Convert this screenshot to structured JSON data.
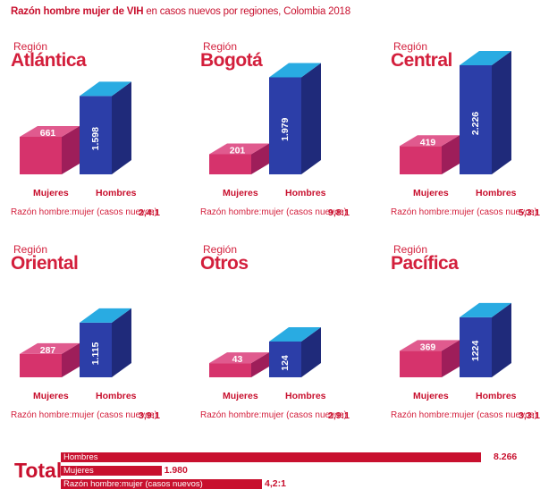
{
  "title_bold": "Razón hombre mujer de VIH",
  "title_rest": " en casos nuevos por regiones, Colombia 2018",
  "chart_data": {
    "type": "bar",
    "title": "Razón hombre mujer de VIH en casos nuevos por regiones, Colombia 2018",
    "categories": [
      "Atlántica",
      "Bogotá",
      "Central",
      "Oriental",
      "Otros",
      "Pacífica"
    ],
    "series": [
      {
        "name": "Mujeres",
        "values": [
          661,
          201,
          419,
          287,
          43,
          369
        ]
      },
      {
        "name": "Hombres",
        "values": [
          1598,
          1979,
          2226,
          1115,
          124,
          1224
        ]
      }
    ],
    "ratio_label": "Razón hombre:mujer (casos nuevos)",
    "ratios": [
      "2,4:1",
      "9,8:1",
      "5,3:1",
      "3,9:1",
      "2,9:1",
      "3,3:1"
    ],
    "colors": {
      "mujeres": "#d6336c",
      "hombres": "#2c3ea8",
      "top_hombres": "#29abe2",
      "accent": "#c8102e"
    }
  },
  "regions": [
    {
      "label": "Región",
      "name": "Atlántica",
      "mujeres": "661",
      "hombres": "1.598",
      "mujeres_label": "Mujeres",
      "hombres_label": "Hombres",
      "ratio_text": "Razón hombre:mujer (casos nuevos)",
      "ratio": "2,4:1"
    },
    {
      "label": "Región",
      "name": "Bogotá",
      "mujeres": "201",
      "hombres": "1.979",
      "mujeres_label": "Mujeres",
      "hombres_label": "Hombres",
      "ratio_text": "Razón hombre:mujer (casos nuevos)",
      "ratio": "9,8:1"
    },
    {
      "label": "Región",
      "name": "Central",
      "mujeres": "419",
      "hombres": "2.226",
      "mujeres_label": "Mujeres",
      "hombres_label": "Hombres",
      "ratio_text": "Razón hombre:mujer (casos nuevos)",
      "ratio": "5,3:1"
    },
    {
      "label": "Región",
      "name": "Oriental",
      "mujeres": "287",
      "hombres": "1.115",
      "mujeres_label": "Mujeres",
      "hombres_label": "Hombres",
      "ratio_text": "Razón hombre:mujer (casos nuevos)",
      "ratio": "3,9:1"
    },
    {
      "label": "Región",
      "name": "Otros",
      "mujeres": "43",
      "hombres": "124",
      "mujeres_label": "Mujeres",
      "hombres_label": "Hombres",
      "ratio_text": "Razón hombre:mujer (casos nuevos)",
      "ratio": "2,9:1"
    },
    {
      "label": "Región",
      "name": "Pacífica",
      "mujeres": "369",
      "hombres": "1224",
      "mujeres_label": "Mujeres",
      "hombres_label": "Hombres",
      "ratio_text": "Razón hombre:mujer (casos nuevos)",
      "ratio": "3,3:1"
    }
  ],
  "total": {
    "label": "Total",
    "hombres_label": "Hombres",
    "hombres_value": "8.266",
    "mujeres_label": "Mujeres",
    "mujeres_value": "1.980",
    "ratio_label": "Razón hombre:mujer (casos nuevos)",
    "ratio_value": "4,2:1"
  }
}
